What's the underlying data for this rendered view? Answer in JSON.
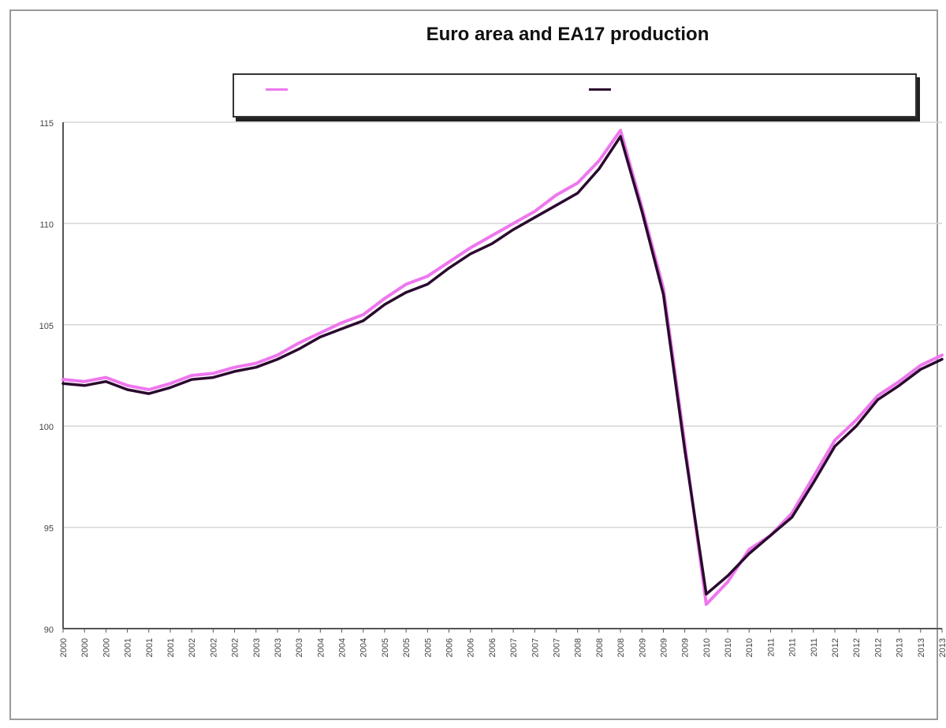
{
  "chart_data": {
    "type": "line",
    "title": "Euro area and EA17 production",
    "subtitle": "",
    "xlabel": "",
    "ylabel": "",
    "ylim": [
      90,
      115
    ],
    "yticks": [
      90,
      95,
      100,
      105,
      110,
      115
    ],
    "grid": true,
    "legend_position": "top",
    "categories": [
      "2000",
      "2000",
      "2000",
      "2001",
      "2001",
      "2001",
      "2002",
      "2002",
      "2002",
      "2003",
      "2003",
      "2003",
      "2004",
      "2004",
      "2004",
      "2005",
      "2005",
      "2005",
      "2006",
      "2006",
      "2006",
      "2007",
      "2007",
      "2007",
      "2008",
      "2008",
      "2008",
      "2009",
      "2009",
      "2009",
      "2010",
      "2010",
      "2010",
      "2011",
      "2011",
      "2011",
      "2012",
      "2012",
      "2012",
      "2013",
      "2013",
      "2013"
    ],
    "series": [
      {
        "name": "",
        "color": "#ee77ee",
        "values": [
          102.3,
          102.2,
          102.4,
          102.0,
          101.8,
          102.1,
          102.5,
          102.6,
          102.9,
          103.1,
          103.5,
          104.1,
          104.6,
          105.1,
          105.5,
          106.3,
          107.0,
          107.4,
          108.1,
          108.8,
          109.4,
          110.0,
          110.6,
          111.4,
          112.0,
          113.1,
          114.6,
          110.8,
          106.8,
          99.1,
          91.2,
          92.3,
          93.9,
          94.6,
          95.7,
          97.5,
          99.3,
          100.3,
          101.5,
          102.2,
          103.0,
          103.5
        ]
      },
      {
        "name": "",
        "color": "#2a0a2e",
        "values": [
          102.1,
          102.0,
          102.2,
          101.8,
          101.6,
          101.9,
          102.3,
          102.4,
          102.7,
          102.9,
          103.3,
          103.8,
          104.4,
          104.8,
          105.2,
          106.0,
          106.6,
          107.0,
          107.8,
          108.5,
          109.0,
          109.7,
          110.3,
          110.9,
          111.5,
          112.7,
          114.3,
          110.6,
          106.5,
          98.8,
          91.7,
          92.6,
          93.7,
          94.6,
          95.5,
          97.2,
          99.0,
          100.0,
          101.3,
          102.0,
          102.8,
          103.3
        ]
      }
    ]
  }
}
